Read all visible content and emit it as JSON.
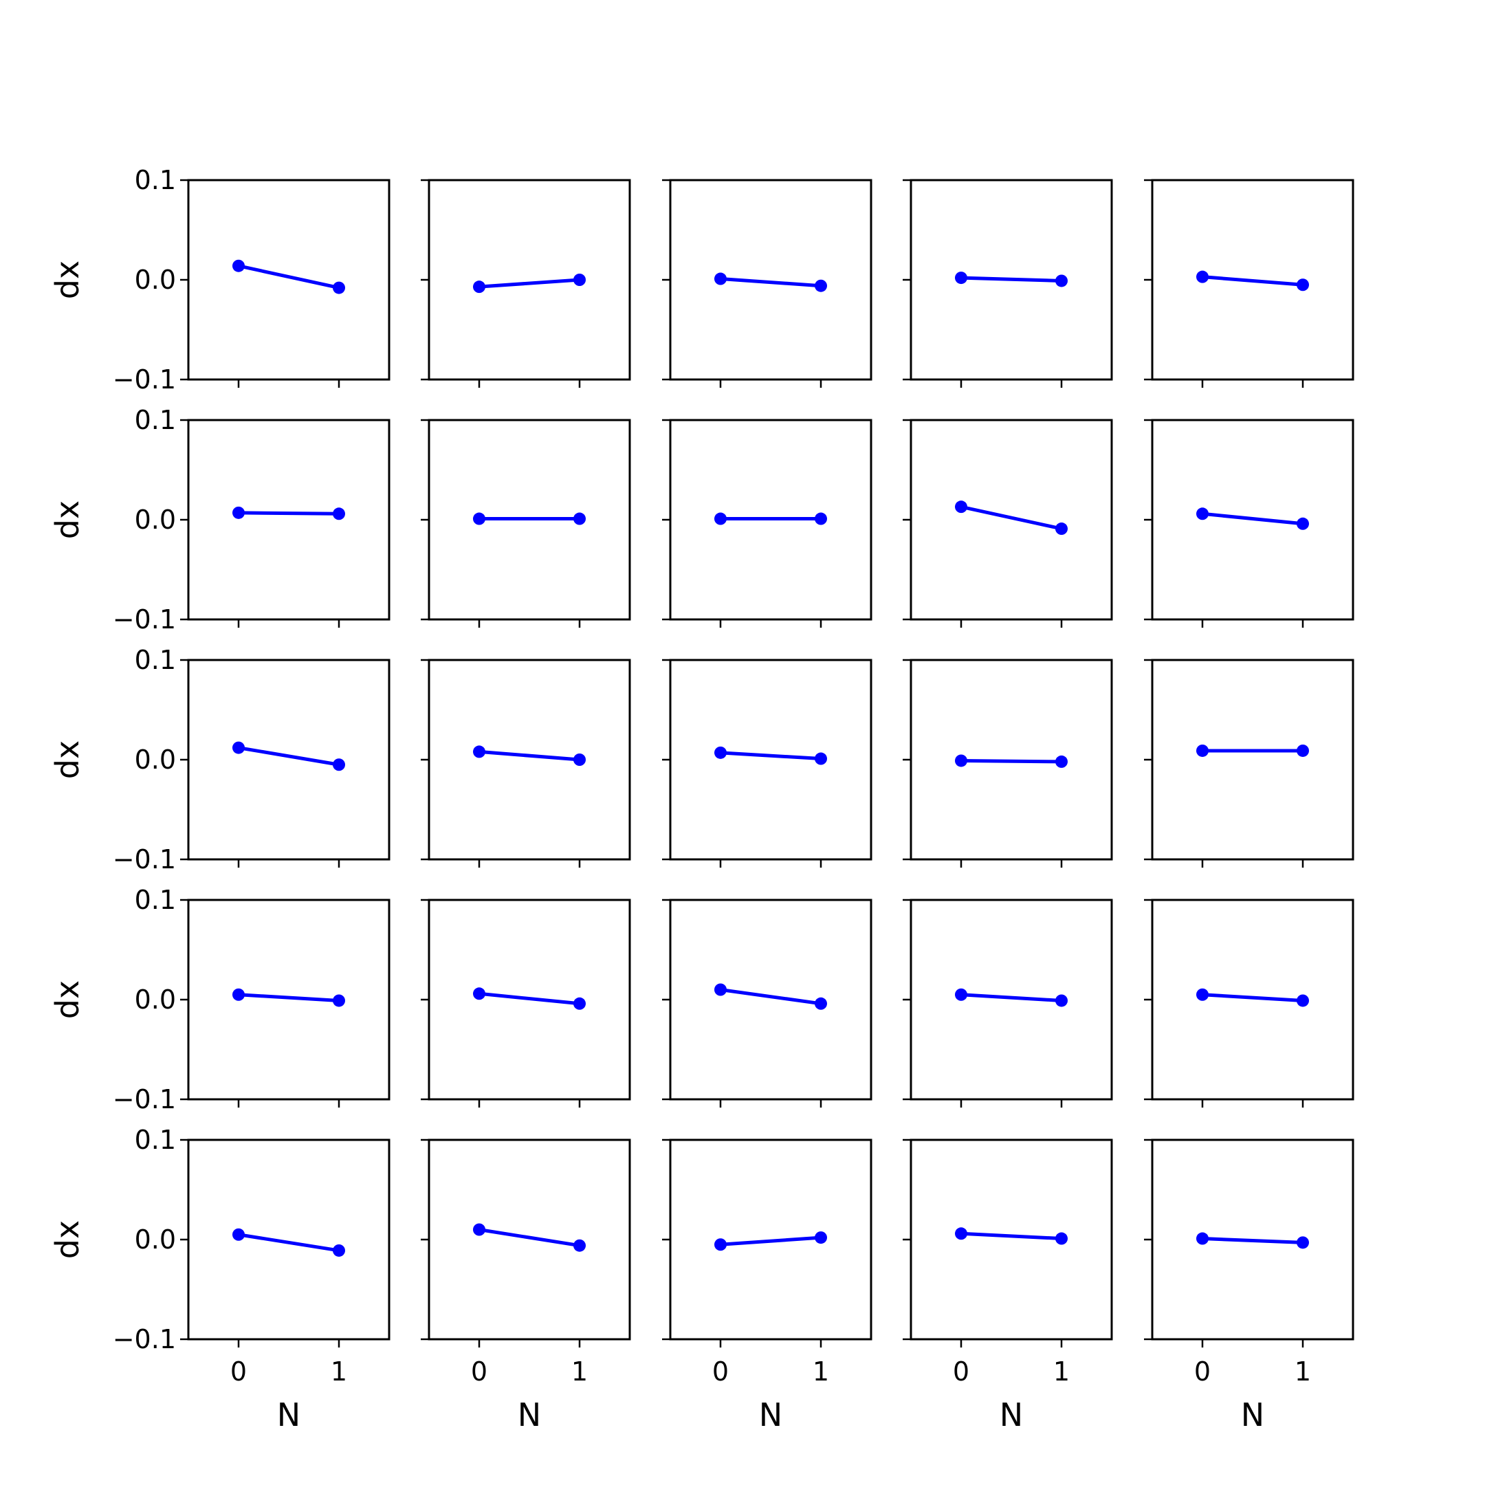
{
  "chart_data": {
    "type": "line",
    "layout": "5x5 grid of small multiples, shared x and y axes",
    "xlabel": "N",
    "ylabel": "dx",
    "x": [
      0,
      1
    ],
    "xticks": [
      0,
      1
    ],
    "xtick_labels": [
      "0",
      "1"
    ],
    "xlim": [
      -0.5,
      1.5
    ],
    "ylim": [
      -0.1,
      0.1
    ],
    "yticks": [
      -0.1,
      0.0,
      0.1
    ],
    "ytick_labels": [
      "−0.1",
      "0.0",
      "0.1"
    ],
    "grid": false,
    "legend": "none",
    "line_color": "#0000ff",
    "panels": [
      {
        "row": 1,
        "col": 1,
        "values": [
          0.014,
          -0.008
        ]
      },
      {
        "row": 1,
        "col": 2,
        "values": [
          -0.007,
          0.0
        ]
      },
      {
        "row": 1,
        "col": 3,
        "values": [
          0.001,
          -0.006
        ]
      },
      {
        "row": 1,
        "col": 4,
        "values": [
          0.002,
          -0.001
        ]
      },
      {
        "row": 1,
        "col": 5,
        "values": [
          0.003,
          -0.005
        ]
      },
      {
        "row": 2,
        "col": 1,
        "values": [
          0.007,
          0.006
        ]
      },
      {
        "row": 2,
        "col": 2,
        "values": [
          0.001,
          0.001
        ]
      },
      {
        "row": 2,
        "col": 3,
        "values": [
          0.001,
          0.001
        ]
      },
      {
        "row": 2,
        "col": 4,
        "values": [
          0.013,
          -0.009
        ]
      },
      {
        "row": 2,
        "col": 5,
        "values": [
          0.006,
          -0.004
        ]
      },
      {
        "row": 3,
        "col": 1,
        "values": [
          0.012,
          -0.005
        ]
      },
      {
        "row": 3,
        "col": 2,
        "values": [
          0.008,
          0.0
        ]
      },
      {
        "row": 3,
        "col": 3,
        "values": [
          0.007,
          0.001
        ]
      },
      {
        "row": 3,
        "col": 4,
        "values": [
          -0.001,
          -0.002
        ]
      },
      {
        "row": 3,
        "col": 5,
        "values": [
          0.009,
          0.009
        ]
      },
      {
        "row": 4,
        "col": 1,
        "values": [
          0.005,
          -0.001
        ]
      },
      {
        "row": 4,
        "col": 2,
        "values": [
          0.006,
          -0.004
        ]
      },
      {
        "row": 4,
        "col": 3,
        "values": [
          0.01,
          -0.004
        ]
      },
      {
        "row": 4,
        "col": 4,
        "values": [
          0.005,
          -0.001
        ]
      },
      {
        "row": 4,
        "col": 5,
        "values": [
          0.005,
          -0.001
        ]
      },
      {
        "row": 5,
        "col": 1,
        "values": [
          0.005,
          -0.011
        ]
      },
      {
        "row": 5,
        "col": 2,
        "values": [
          0.01,
          -0.006
        ]
      },
      {
        "row": 5,
        "col": 3,
        "values": [
          -0.005,
          0.002
        ]
      },
      {
        "row": 5,
        "col": 4,
        "values": [
          0.006,
          0.001
        ]
      },
      {
        "row": 5,
        "col": 5,
        "values": [
          0.001,
          -0.003
        ]
      }
    ]
  }
}
